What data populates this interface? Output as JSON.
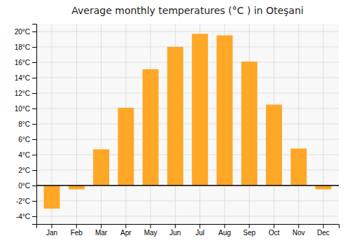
{
  "chart_data": {
    "type": "bar",
    "title": "Average monthly temperatures (°C ) in Oteşani",
    "categories": [
      "Jan",
      "Feb",
      "Mar",
      "Apr",
      "May",
      "Jun",
      "Jul",
      "Aug",
      "Sep",
      "Oct",
      "Nov",
      "Dec"
    ],
    "values": [
      -3.0,
      -0.5,
      4.7,
      10.1,
      15.1,
      18.0,
      19.7,
      19.5,
      16.1,
      10.5,
      4.8,
      -0.5
    ],
    "color": "#FFA726",
    "ylim": [
      -5,
      21
    ],
    "yticks": [
      {
        "value": -4,
        "label": "-4°C"
      },
      {
        "value": -2,
        "label": "-2°C"
      },
      {
        "value": 0,
        "label": "0°C"
      },
      {
        "value": 2,
        "label": "2°C"
      },
      {
        "value": 4,
        "label": "4°C"
      },
      {
        "value": 6,
        "label": "6°C"
      },
      {
        "value": 8,
        "label": "8°C"
      },
      {
        "value": 10,
        "label": "10°C"
      },
      {
        "value": 12,
        "label": "12°C"
      },
      {
        "value": 14,
        "label": "14°C"
      },
      {
        "value": 16,
        "label": "16°C"
      },
      {
        "value": 18,
        "label": "18°C"
      },
      {
        "value": 20,
        "label": "20°C"
      }
    ],
    "grid": true
  }
}
